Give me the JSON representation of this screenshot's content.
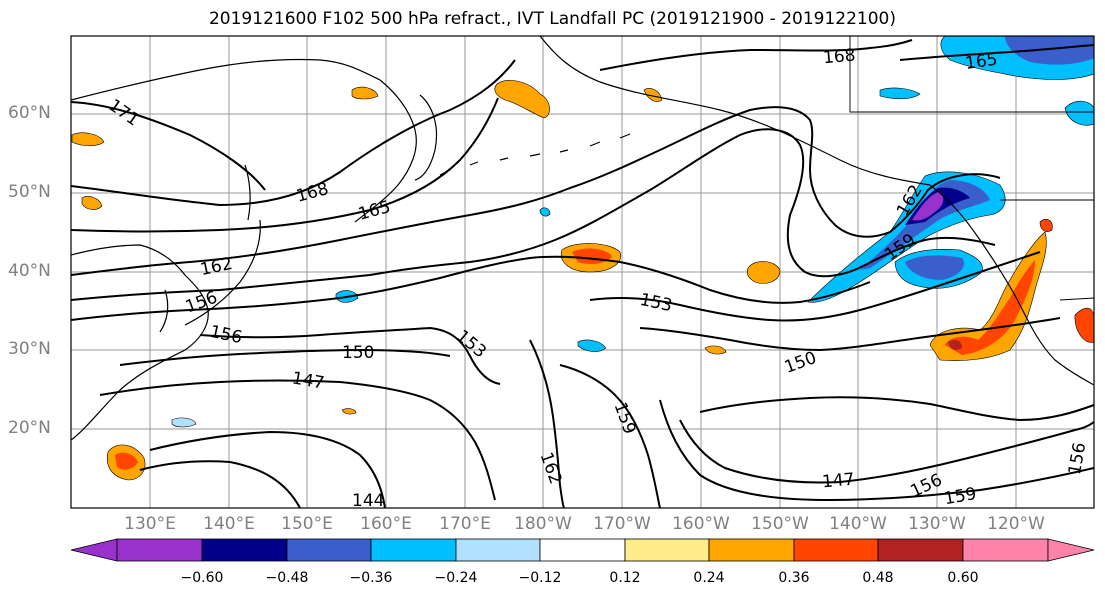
{
  "title": "2019121600 F102 500 hPa refract., IVT Landfall PC (2019121900 - 2019122100)",
  "map": {
    "lat_labels": [
      "60°N",
      "50°N",
      "40°N",
      "30°N",
      "20°N"
    ],
    "lon_labels": [
      "130°E",
      "140°E",
      "150°E",
      "160°E",
      "170°E",
      "180°W",
      "170°W",
      "160°W",
      "150°W",
      "140°W",
      "130°W",
      "120°W"
    ],
    "contour_labels": [
      "171",
      "168",
      "165",
      "162",
      "159",
      "156",
      "153",
      "150",
      "147",
      "144"
    ],
    "colors": {
      "neg_strong": "#9932cc",
      "neg_navy": "#00008b",
      "neg_blue": "#3a5fcd",
      "neg_sky": "#00bfff",
      "neg_light": "#b0e2ff",
      "neutral": "#ffffff",
      "pos_yellow": "#ffec8b",
      "pos_orange": "#ffa500",
      "pos_red": "#ff4500",
      "pos_dark": "#b22222",
      "pos_pink": "#ff82ab"
    }
  },
  "colorbar": {
    "ticks": [
      "−0.60",
      "−0.48",
      "−0.36",
      "−0.24",
      "−0.12",
      "0.12",
      "0.24",
      "0.36",
      "0.48",
      "0.60"
    ]
  }
}
